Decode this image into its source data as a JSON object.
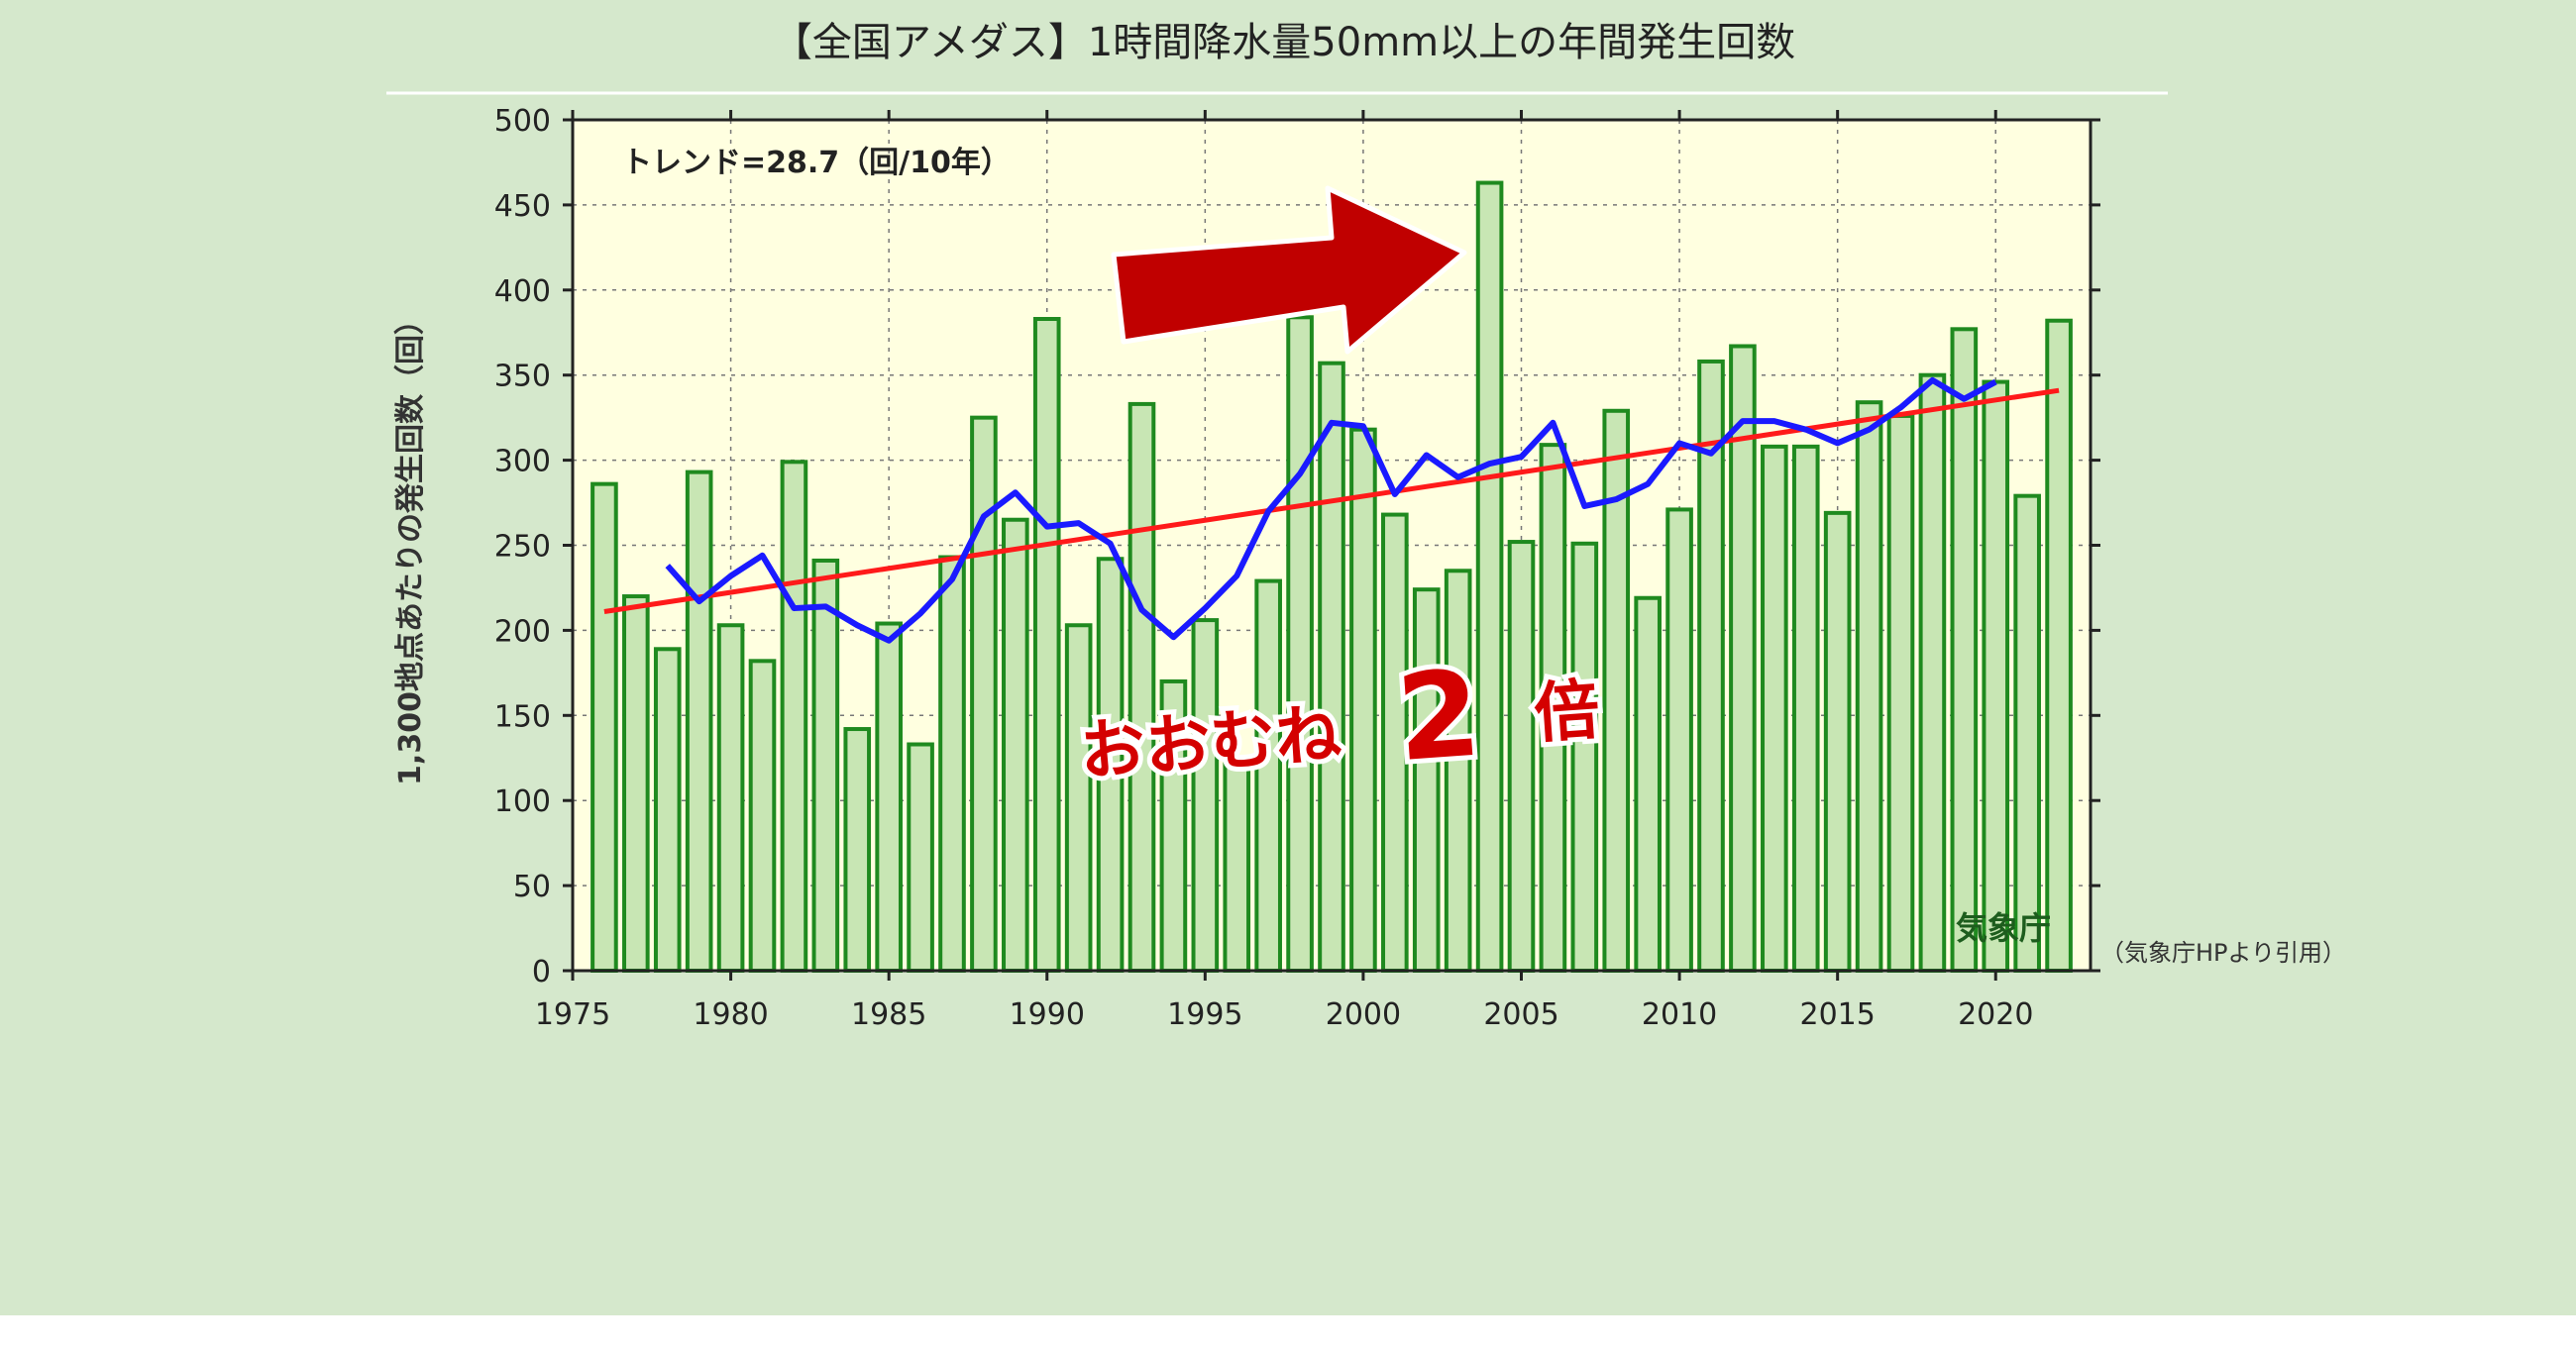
{
  "title": "【全国アメダス】1時間降水量50mm以上の年間発生回数",
  "source_note": "（気象庁HPより引用）",
  "agency_mark": "気象庁",
  "callout_text": "おおむね",
  "callout_number": "2",
  "callout_suffix": "倍",
  "colors": {
    "bar_fill": "#c8e6b4",
    "bar_stroke": "#1f8a1f",
    "plot_bg": "#ffffe0",
    "moving_avg": "#1a1aff",
    "trend_line": "#ff1a1a",
    "arrow": "#c00000",
    "panel_bg": "#d5e8cc"
  },
  "chart_data": {
    "type": "bar",
    "title": "",
    "xlabel": "",
    "ylabel": "1,300地点あたりの発生回数（回）",
    "ylim": [
      0,
      500
    ],
    "xlim": [
      1975,
      2023
    ],
    "yticks": [
      0,
      50,
      100,
      150,
      200,
      250,
      300,
      350,
      400,
      450,
      500
    ],
    "xticks": [
      1975,
      1980,
      1985,
      1990,
      1995,
      2000,
      2005,
      2010,
      2015,
      2020
    ],
    "grid": true,
    "trend_annotation": "トレンド=28.7（回/10年）",
    "years": [
      1976,
      1977,
      1978,
      1979,
      1980,
      1981,
      1982,
      1983,
      1984,
      1985,
      1986,
      1987,
      1988,
      1989,
      1990,
      1991,
      1992,
      1993,
      1994,
      1995,
      1996,
      1997,
      1998,
      1999,
      2000,
      2001,
      2002,
      2003,
      2004,
      2005,
      2006,
      2007,
      2008,
      2009,
      2010,
      2011,
      2012,
      2013,
      2014,
      2015,
      2016,
      2017,
      2018,
      2019,
      2020,
      2021,
      2022
    ],
    "values": [
      286,
      220,
      189,
      293,
      203,
      182,
      299,
      241,
      142,
      204,
      133,
      243,
      325,
      265,
      383,
      203,
      242,
      333,
      170,
      206,
      123,
      229,
      384,
      357,
      318,
      268,
      224,
      235,
      463,
      252,
      309,
      251,
      329,
      219,
      271,
      358,
      367,
      308,
      308,
      269,
      334,
      326,
      350,
      377,
      346,
      279,
      382
    ],
    "moving_average": {
      "x": [
        1978,
        1979,
        1980,
        1981,
        1982,
        1983,
        1984,
        1985,
        1986,
        1987,
        1988,
        1989,
        1990,
        1991,
        1992,
        1993,
        1994,
        1995,
        1996,
        1997,
        1998,
        1999,
        2000,
        2001,
        2002,
        2003,
        2004,
        2005,
        2006,
        2007,
        2008,
        2009,
        2010,
        2011,
        2012,
        2013,
        2014,
        2015,
        2016,
        2017,
        2018,
        2019,
        2020
      ],
      "values": [
        238,
        217,
        232,
        244,
        213,
        214,
        203,
        194,
        210,
        230,
        267,
        281,
        261,
        263,
        251,
        212,
        196,
        213,
        232,
        270,
        292,
        322,
        320,
        280,
        303,
        290,
        298,
        302,
        322,
        273,
        277,
        286,
        310,
        304,
        323,
        323,
        318,
        310,
        318,
        331,
        347,
        336,
        346
      ]
    },
    "trend_line": {
      "x": [
        1976,
        2022
      ],
      "values": [
        211,
        341
      ]
    },
    "legend": "none"
  }
}
